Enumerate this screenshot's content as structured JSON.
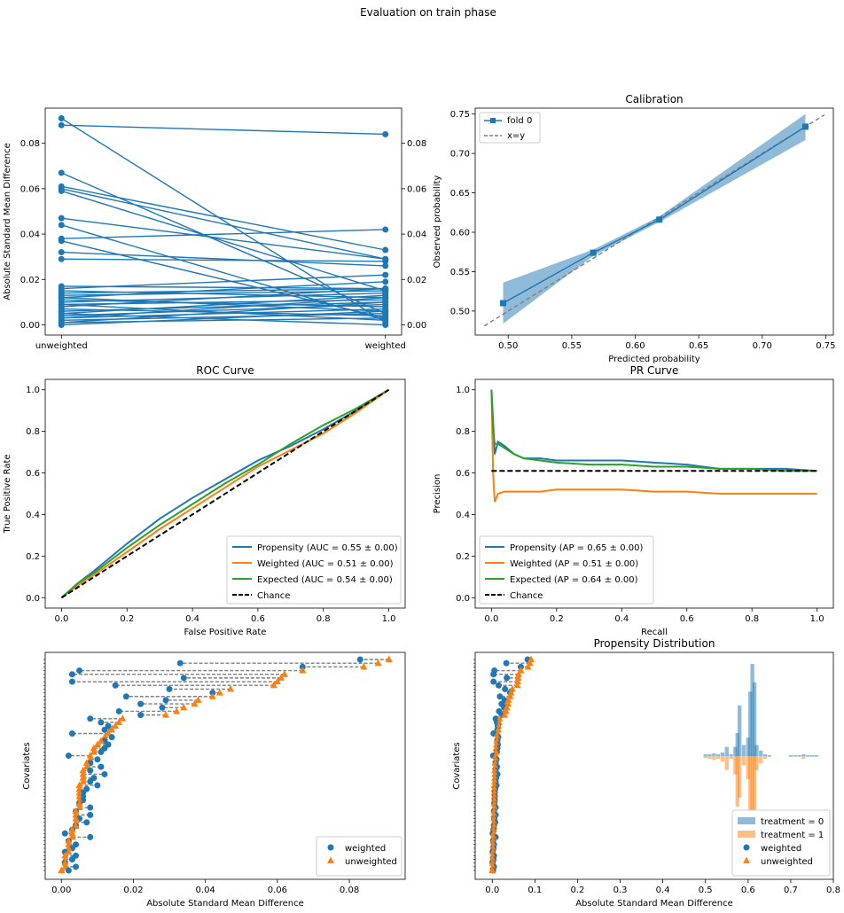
{
  "suptitle": "Evaluation on train phase",
  "colors": {
    "blue": "#1f77b4",
    "orange": "#ff7f0e",
    "green": "#2ca02c",
    "gray": "#7f7f7f",
    "black": "#000000"
  },
  "chart_data": [
    {
      "id": "slope",
      "type": "line",
      "title": "",
      "ylabel": "Absolute Standard Mean Difference",
      "categories": [
        "unweighted",
        "weighted"
      ],
      "ylim": [
        -0.0045,
        0.0955
      ],
      "yticks": [
        0.0,
        0.02,
        0.04,
        0.06,
        0.08
      ],
      "ytick_labels": [
        "0.00",
        "0.02",
        "0.04",
        "0.06",
        "0.08"
      ],
      "right_axis": true,
      "pairs": [
        [
          0.091,
          0.001
        ],
        [
          0.088,
          0.084
        ],
        [
          0.067,
          0.005
        ],
        [
          0.061,
          0.033
        ],
        [
          0.06,
          0.029
        ],
        [
          0.059,
          0.015
        ],
        [
          0.047,
          0.029
        ],
        [
          0.044,
          0.002
        ],
        [
          0.038,
          0.042
        ],
        [
          0.037,
          0.003
        ],
        [
          0.032,
          0.026
        ],
        [
          0.029,
          0.028
        ],
        [
          0.017,
          0.016
        ],
        [
          0.016,
          0.022
        ],
        [
          0.015,
          0.012
        ],
        [
          0.014,
          0.016
        ],
        [
          0.012,
          0.019
        ],
        [
          0.011,
          0.008
        ],
        [
          0.01,
          0.014
        ],
        [
          0.009,
          0.011
        ],
        [
          0.008,
          0.016
        ],
        [
          0.007,
          0.004
        ],
        [
          0.006,
          0.01
        ],
        [
          0.005,
          0.013
        ],
        [
          0.004,
          0.009
        ],
        [
          0.003,
          0.007
        ],
        [
          0.002,
          0.005
        ],
        [
          0.001,
          0.003
        ],
        [
          0.0,
          0.006
        ],
        [
          0.005,
          0.0
        ],
        [
          0.012,
          0.006
        ],
        [
          0.003,
          0.012
        ],
        [
          0.009,
          0.002
        ],
        [
          0.001,
          0.01
        ],
        [
          0.013,
          0.015
        ]
      ]
    },
    {
      "id": "calibration",
      "type": "line",
      "title": "Calibration",
      "xlabel": "Predicted probability",
      "ylabel": "Observed probability",
      "xlim": [
        0.474,
        0.756
      ],
      "ylim": [
        0.4695,
        0.7575
      ],
      "xticks": [
        0.5,
        0.55,
        0.6,
        0.65,
        0.7,
        0.75
      ],
      "xtick_labels": [
        "0.50",
        "0.55",
        "0.60",
        "0.65",
        "0.70",
        "0.75"
      ],
      "yticks": [
        0.5,
        0.55,
        0.6,
        0.65,
        0.7,
        0.75
      ],
      "ytick_labels": [
        "0.50",
        "0.55",
        "0.60",
        "0.65",
        "0.70",
        "0.75"
      ],
      "series": [
        {
          "name": "fold 0",
          "x": [
            0.496,
            0.567,
            0.619,
            0.734
          ],
          "y": [
            0.51,
            0.574,
            0.616,
            0.734
          ],
          "lower": [
            0.484,
            0.57,
            0.613,
            0.717
          ],
          "upper": [
            0.536,
            0.578,
            0.62,
            0.75
          ]
        }
      ],
      "diagonal": {
        "name": "x=y",
        "range": [
          0.481,
          0.749
        ]
      },
      "legend_loc": "upper left"
    },
    {
      "id": "roc",
      "type": "line",
      "title": "ROC Curve",
      "xlabel": "False Positive Rate",
      "ylabel": "True Positive Rate",
      "xlim": [
        -0.05,
        1.05
      ],
      "ylim": [
        -0.05,
        1.05
      ],
      "xticks": [
        0.0,
        0.2,
        0.4,
        0.6,
        0.8,
        1.0
      ],
      "xtick_labels": [
        "0.0",
        "0.2",
        "0.4",
        "0.6",
        "0.8",
        "1.0"
      ],
      "yticks": [
        0.0,
        0.2,
        0.4,
        0.6,
        0.8,
        1.0
      ],
      "ytick_labels": [
        "0.0",
        "0.2",
        "0.4",
        "0.6",
        "0.8",
        "1.0"
      ],
      "series": [
        {
          "name": "Propensity (AUC = 0.55 ± 0.00)",
          "color": "#1f77b4",
          "x": [
            0,
            0.05,
            0.1,
            0.2,
            0.3,
            0.4,
            0.5,
            0.6,
            0.7,
            0.8,
            0.9,
            1.0
          ],
          "y": [
            0,
            0.07,
            0.13,
            0.26,
            0.38,
            0.48,
            0.57,
            0.66,
            0.73,
            0.81,
            0.9,
            1.0
          ]
        },
        {
          "name": "Weighted (AUC = 0.51 ± 0.00)",
          "color": "#ff7f0e",
          "x": [
            0,
            0.05,
            0.1,
            0.2,
            0.3,
            0.4,
            0.5,
            0.6,
            0.7,
            0.8,
            0.9,
            1.0
          ],
          "y": [
            0,
            0.06,
            0.11,
            0.22,
            0.33,
            0.43,
            0.53,
            0.63,
            0.71,
            0.79,
            0.89,
            1.0
          ]
        },
        {
          "name": "Expected (AUC = 0.54 ± 0.00)",
          "color": "#2ca02c",
          "x": [
            0,
            0.05,
            0.1,
            0.2,
            0.3,
            0.4,
            0.5,
            0.6,
            0.7,
            0.8,
            0.9,
            1.0
          ],
          "y": [
            0,
            0.07,
            0.12,
            0.24,
            0.35,
            0.45,
            0.55,
            0.64,
            0.74,
            0.83,
            0.91,
            1.0
          ]
        },
        {
          "name": "Chance",
          "color": "#000000",
          "dashed": true,
          "x": [
            0,
            1
          ],
          "y": [
            0,
            1
          ]
        }
      ],
      "legend_loc": "lower right"
    },
    {
      "id": "pr",
      "type": "line",
      "title": "PR Curve",
      "xlabel": "Recall",
      "ylabel": "Precision",
      "xlim": [
        -0.05,
        1.05
      ],
      "ylim": [
        -0.05,
        1.05
      ],
      "xticks": [
        0.0,
        0.2,
        0.4,
        0.6,
        0.8,
        1.0
      ],
      "xtick_labels": [
        "0.0",
        "0.2",
        "0.4",
        "0.6",
        "0.8",
        "1.0"
      ],
      "yticks": [
        0.0,
        0.2,
        0.4,
        0.6,
        0.8,
        1.0
      ],
      "ytick_labels": [
        "0.0",
        "0.2",
        "0.4",
        "0.6",
        "0.8",
        "1.0"
      ],
      "series": [
        {
          "name": "Propensity (AP = 0.65 ± 0.00)",
          "color": "#1f77b4",
          "x": [
            0,
            0.005,
            0.01,
            0.02,
            0.04,
            0.07,
            0.1,
            0.15,
            0.2,
            0.3,
            0.4,
            0.5,
            0.6,
            0.7,
            0.8,
            0.9,
            1.0
          ],
          "y": [
            1.0,
            0.85,
            0.69,
            0.75,
            0.73,
            0.69,
            0.67,
            0.67,
            0.66,
            0.66,
            0.66,
            0.65,
            0.64,
            0.62,
            0.62,
            0.62,
            0.61
          ]
        },
        {
          "name": "Weighted (AP = 0.51 ± 0.00)",
          "color": "#ff7f0e",
          "x": [
            0,
            0.005,
            0.01,
            0.02,
            0.04,
            0.07,
            0.1,
            0.15,
            0.2,
            0.3,
            0.4,
            0.5,
            0.6,
            0.7,
            0.8,
            0.9,
            1.0
          ],
          "y": [
            1.0,
            0.6,
            0.46,
            0.5,
            0.51,
            0.51,
            0.51,
            0.51,
            0.52,
            0.52,
            0.52,
            0.51,
            0.51,
            0.5,
            0.5,
            0.5,
            0.5
          ]
        },
        {
          "name": "Expected (AP = 0.64 ± 0.00)",
          "color": "#2ca02c",
          "x": [
            0,
            0.005,
            0.01,
            0.02,
            0.04,
            0.07,
            0.1,
            0.15,
            0.2,
            0.3,
            0.4,
            0.5,
            0.6,
            0.7,
            0.8,
            0.9,
            1.0
          ],
          "y": [
            1.0,
            0.8,
            0.74,
            0.74,
            0.72,
            0.69,
            0.67,
            0.66,
            0.65,
            0.64,
            0.64,
            0.63,
            0.63,
            0.62,
            0.62,
            0.61,
            0.61
          ]
        },
        {
          "name": "Chance",
          "color": "#000000",
          "dashed": true,
          "x": [
            0,
            1
          ],
          "y": [
            0.61,
            0.61
          ]
        }
      ],
      "legend_loc": "lower left"
    },
    {
      "id": "love1",
      "type": "scatter",
      "title": "",
      "xlabel": "Absolute Standard Mean Difference",
      "ylabel": "Covariates",
      "xlim": [
        -0.0045,
        0.0955
      ],
      "xticks": [
        0.0,
        0.02,
        0.04,
        0.06,
        0.08
      ],
      "xtick_labels": [
        "0.00",
        "0.02",
        "0.04",
        "0.06",
        "0.08"
      ],
      "legend": [
        "weighted",
        "unweighted"
      ],
      "legend_loc": "lower right"
    },
    {
      "id": "love2",
      "type": "scatter",
      "title": "Propensity Distribution",
      "xlabel": "Absolute Standard Mean Difference",
      "ylabel": "Covariates",
      "xlim": [
        -0.04,
        0.8
      ],
      "xticks": [
        0.0,
        0.1,
        0.2,
        0.3,
        0.4,
        0.5,
        0.6,
        0.7,
        0.8
      ],
      "xtick_labels": [
        "0.0",
        "0.1",
        "0.2",
        "0.3",
        "0.4",
        "0.5",
        "0.6",
        "0.7",
        "0.8"
      ],
      "legend": [
        "treatment = 0",
        "treatment = 1",
        "weighted",
        "unweighted"
      ],
      "legend_loc": "lower right",
      "hist_bins": {
        "x": [
          0.5,
          0.51,
          0.52,
          0.53,
          0.54,
          0.55,
          0.56,
          0.57,
          0.575,
          0.58,
          0.59,
          0.6,
          0.605,
          0.61,
          0.615,
          0.62,
          0.63,
          0.64,
          0.65,
          0.7,
          0.71,
          0.72,
          0.73,
          0.74,
          0.75,
          0.76
        ],
        "treatment_0": [
          2,
          2,
          3,
          2,
          4,
          10,
          2,
          10,
          25,
          55,
          12,
          20,
          70,
          100,
          80,
          12,
          6,
          2,
          1,
          1,
          1,
          1,
          2,
          1,
          1,
          1
        ],
        "treatment_1": [
          2,
          3,
          4,
          3,
          6,
          15,
          3,
          20,
          55,
          45,
          10,
          25,
          100,
          90,
          60,
          15,
          8,
          3,
          1,
          1,
          1,
          1,
          3,
          1,
          1,
          1
        ]
      }
    }
  ],
  "love_points": [
    [
      0.091,
      0.083
    ],
    [
      0.088,
      0.033
    ],
    [
      0.084,
      0.067
    ],
    [
      0.067,
      0.005
    ],
    [
      0.062,
      0.003
    ],
    [
      0.061,
      0.034
    ],
    [
      0.06,
      0.003
    ],
    [
      0.059,
      0.015
    ],
    [
      0.047,
      0.03
    ],
    [
      0.044,
      0.042
    ],
    [
      0.042,
      0.018
    ],
    [
      0.038,
      0.029
    ],
    [
      0.037,
      0.022
    ],
    [
      0.034,
      0.028
    ],
    [
      0.032,
      0.016
    ],
    [
      0.029,
      0.022
    ],
    [
      0.017,
      0.008
    ],
    [
      0.016,
      0.011
    ],
    [
      0.015,
      0.013
    ],
    [
      0.014,
      0.012
    ],
    [
      0.013,
      0.003
    ],
    [
      0.012,
      0.014
    ],
    [
      0.011,
      0.012
    ],
    [
      0.01,
      0.013
    ],
    [
      0.009,
      0.012
    ],
    [
      0.009,
      0.011
    ],
    [
      0.008,
      0.002
    ],
    [
      0.008,
      0.01
    ],
    [
      0.007,
      0.008
    ],
    [
      0.007,
      0.011
    ],
    [
      0.006,
      0.008
    ],
    [
      0.006,
      0.012
    ],
    [
      0.006,
      0.009
    ],
    [
      0.006,
      0.008
    ],
    [
      0.005,
      0.01
    ],
    [
      0.005,
      0.007
    ],
    [
      0.005,
      0.006
    ],
    [
      0.005,
      0.006
    ],
    [
      0.005,
      0.006
    ],
    [
      0.005,
      0.005
    ],
    [
      0.005,
      0.008
    ],
    [
      0.004,
      0.004
    ],
    [
      0.004,
      0.008
    ],
    [
      0.004,
      0.005
    ],
    [
      0.004,
      0.007
    ],
    [
      0.004,
      0.004
    ],
    [
      0.003,
      0.003
    ],
    [
      0.003,
      0.001
    ],
    [
      0.003,
      0.008
    ],
    [
      0.002,
      0.002
    ],
    [
      0.002,
      0.004
    ],
    [
      0.002,
      0.003
    ],
    [
      0.002,
      0.001
    ],
    [
      0.001,
      0.004
    ],
    [
      0.001,
      0.003
    ],
    [
      0.001,
      0.001
    ],
    [
      0.001,
      0.004
    ],
    [
      0.0,
      0.002
    ]
  ]
}
